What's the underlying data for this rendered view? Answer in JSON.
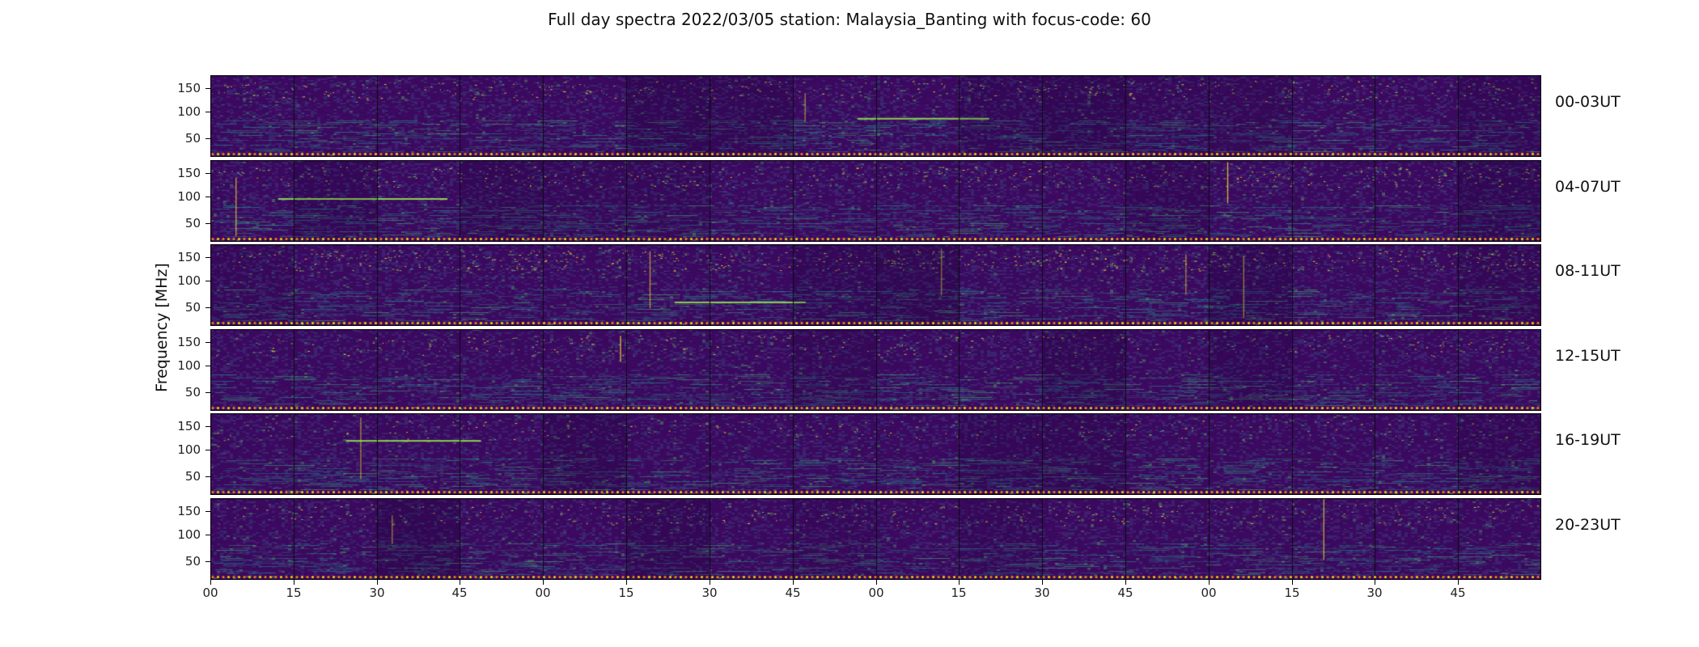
{
  "chart": {
    "title": "Full day spectra 2022/03/05 station: Malaysia_Banting with focus-code: 60",
    "ylabel": "Frequency [MHz]"
  },
  "chart_data": {
    "type": "heatmap",
    "subtype": "radio-spectrogram-grid",
    "title": "Full day spectra 2022/03/05 station: Malaysia_Banting with focus-code: 60",
    "date": "2022/03/05",
    "station": "Malaysia_Banting",
    "focus_code": "60",
    "ylabel": "Frequency [MHz]",
    "y_ticks": [
      "150",
      "100",
      "50"
    ],
    "y_range_mhz": [
      45,
      170
    ],
    "rows": [
      {
        "label": "00-03UT",
        "seed": 11,
        "density": 1.0
      },
      {
        "label": "04-07UT",
        "seed": 22,
        "density": 1.5
      },
      {
        "label": "08-11UT",
        "seed": 33,
        "density": 1.4
      },
      {
        "label": "12-15UT",
        "seed": 44,
        "density": 0.7
      },
      {
        "label": "16-19UT",
        "seed": 55,
        "density": 0.8
      },
      {
        "label": "20-23UT",
        "seed": 66,
        "density": 1.0
      }
    ],
    "x_tick_labels": [
      "00",
      "15",
      "30",
      "45",
      "00",
      "15",
      "30",
      "45",
      "00",
      "15",
      "30",
      "45",
      "00",
      "15",
      "30",
      "45"
    ],
    "segments_per_row": 16,
    "minutes_per_segment": 15,
    "hours_per_row": 4,
    "colormap": "viridis",
    "grid": false,
    "legend": "none",
    "colors": {
      "background": "#ffffff",
      "panel_base": "#38095c",
      "streak_teal": "#21918c",
      "streak_green": "#35b779",
      "bright_yellow": "#fde725",
      "baseline_dot_orange": "#ff7f0e",
      "baseline_dot_yellow": "#ffd400",
      "text": "#111111"
    }
  }
}
